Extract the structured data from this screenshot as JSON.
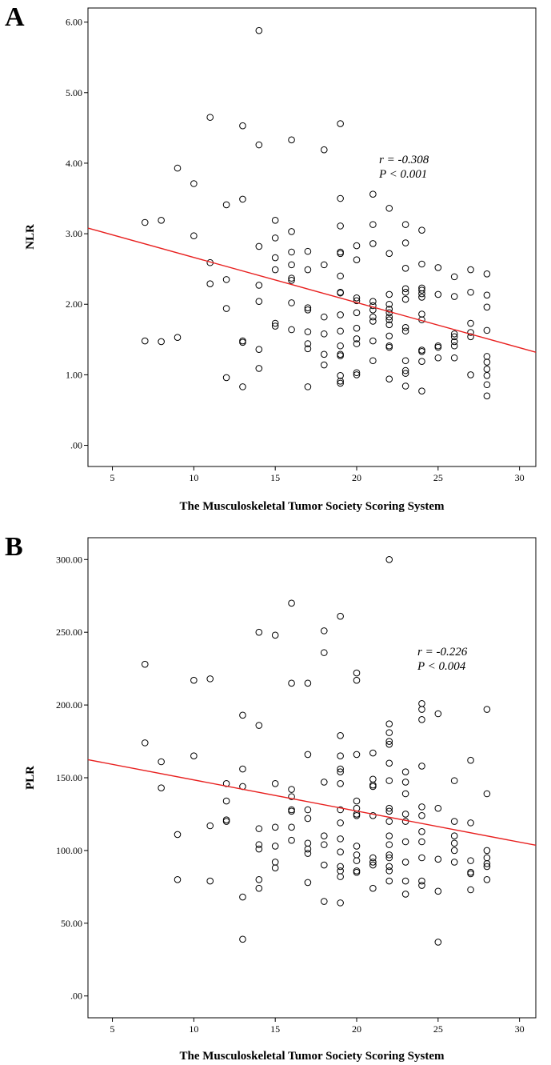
{
  "chart_data": [
    {
      "type": "scatter",
      "panel": "A",
      "xlabel": "The Musculoskeletal Tumor Society Scoring System",
      "ylabel": "NLR",
      "xlim": [
        3.5,
        31
      ],
      "ylim": [
        -0.3,
        6.2
      ],
      "xticks": [
        5,
        10,
        15,
        20,
        25,
        30
      ],
      "yticks": [
        0,
        1,
        2,
        3,
        4,
        5,
        6
      ],
      "ytick_labels": [
        ".00",
        "1.00",
        "2.00",
        "3.00",
        "4.00",
        "5.00",
        "6.00"
      ],
      "annotation": [
        "r  = -0.308",
        "P < 0.001"
      ],
      "fit_line": {
        "color": "#e8201f",
        "y_at_xmin": 3.08,
        "y_at_xmax": 1.32
      },
      "grid": false,
      "points": [
        [
          7,
          3.16
        ],
        [
          7,
          1.48
        ],
        [
          8,
          3.19
        ],
        [
          8,
          1.47
        ],
        [
          9,
          3.93
        ],
        [
          9,
          1.53
        ],
        [
          10,
          3.71
        ],
        [
          10,
          2.97
        ],
        [
          11,
          4.65
        ],
        [
          11,
          2.59
        ],
        [
          11,
          2.29
        ],
        [
          12,
          3.41
        ],
        [
          12,
          2.35
        ],
        [
          12,
          1.94
        ],
        [
          12,
          0.96
        ],
        [
          13,
          4.53
        ],
        [
          13,
          3.49
        ],
        [
          13,
          1.48
        ],
        [
          13,
          1.46
        ],
        [
          13,
          0.83
        ],
        [
          14,
          5.88
        ],
        [
          14,
          4.26
        ],
        [
          14,
          2.82
        ],
        [
          14,
          2.27
        ],
        [
          14,
          2.04
        ],
        [
          14,
          1.36
        ],
        [
          14,
          1.09
        ],
        [
          15,
          3.19
        ],
        [
          15,
          2.94
        ],
        [
          15,
          2.66
        ],
        [
          15,
          2.49
        ],
        [
          15,
          1.73
        ],
        [
          15,
          1.69
        ],
        [
          16,
          4.33
        ],
        [
          16,
          3.03
        ],
        [
          16,
          2.74
        ],
        [
          16,
          2.56
        ],
        [
          16,
          2.37
        ],
        [
          16,
          2.34
        ],
        [
          16,
          2.02
        ],
        [
          16,
          1.64
        ],
        [
          17,
          2.75
        ],
        [
          17,
          2.49
        ],
        [
          17,
          1.95
        ],
        [
          17,
          1.92
        ],
        [
          17,
          1.61
        ],
        [
          17,
          1.44
        ],
        [
          17,
          1.37
        ],
        [
          17,
          0.83
        ],
        [
          18,
          4.19
        ],
        [
          18,
          2.56
        ],
        [
          18,
          1.82
        ],
        [
          18,
          1.58
        ],
        [
          18,
          1.29
        ],
        [
          18,
          1.14
        ],
        [
          19,
          4.56
        ],
        [
          19,
          3.5
        ],
        [
          19,
          3.11
        ],
        [
          19,
          2.74
        ],
        [
          19,
          2.72
        ],
        [
          19,
          2.4
        ],
        [
          19,
          2.17
        ],
        [
          19,
          2.16
        ],
        [
          19,
          1.85
        ],
        [
          19,
          1.62
        ],
        [
          19,
          1.41
        ],
        [
          19,
          1.29
        ],
        [
          19,
          1.27
        ],
        [
          19,
          0.99
        ],
        [
          19,
          0.91
        ],
        [
          19,
          0.88
        ],
        [
          20,
          2.83
        ],
        [
          20,
          2.63
        ],
        [
          20,
          2.09
        ],
        [
          20,
          2.05
        ],
        [
          20,
          1.88
        ],
        [
          20,
          1.66
        ],
        [
          20,
          1.51
        ],
        [
          20,
          1.44
        ],
        [
          20,
          1.03
        ],
        [
          20,
          1.0
        ],
        [
          21,
          3.56
        ],
        [
          21,
          3.13
        ],
        [
          21,
          2.86
        ],
        [
          21,
          2.04
        ],
        [
          21,
          1.98
        ],
        [
          21,
          1.92
        ],
        [
          21,
          1.82
        ],
        [
          21,
          1.76
        ],
        [
          21,
          1.48
        ],
        [
          21,
          1.2
        ],
        [
          22,
          3.36
        ],
        [
          22,
          2.72
        ],
        [
          22,
          2.14
        ],
        [
          22,
          2.0
        ],
        [
          22,
          1.93
        ],
        [
          22,
          1.88
        ],
        [
          22,
          1.82
        ],
        [
          22,
          1.78
        ],
        [
          22,
          1.71
        ],
        [
          22,
          1.55
        ],
        [
          22,
          1.41
        ],
        [
          22,
          1.39
        ],
        [
          22,
          0.94
        ],
        [
          23,
          3.13
        ],
        [
          23,
          2.87
        ],
        [
          23,
          2.51
        ],
        [
          23,
          2.22
        ],
        [
          23,
          2.17
        ],
        [
          23,
          2.07
        ],
        [
          23,
          1.67
        ],
        [
          23,
          1.62
        ],
        [
          23,
          1.2
        ],
        [
          23,
          1.06
        ],
        [
          23,
          1.02
        ],
        [
          23,
          0.84
        ],
        [
          24,
          3.05
        ],
        [
          24,
          2.57
        ],
        [
          24,
          2.23
        ],
        [
          24,
          2.2
        ],
        [
          24,
          2.15
        ],
        [
          24,
          2.1
        ],
        [
          24,
          1.86
        ],
        [
          24,
          1.78
        ],
        [
          24,
          1.35
        ],
        [
          24,
          1.33
        ],
        [
          24,
          1.19
        ],
        [
          24,
          0.77
        ],
        [
          25,
          2.52
        ],
        [
          25,
          2.14
        ],
        [
          25,
          1.41
        ],
        [
          25,
          1.39
        ],
        [
          25,
          1.24
        ],
        [
          26,
          2.39
        ],
        [
          26,
          2.11
        ],
        [
          26,
          1.58
        ],
        [
          26,
          1.54
        ],
        [
          26,
          1.47
        ],
        [
          26,
          1.41
        ],
        [
          26,
          1.24
        ],
        [
          27,
          2.49
        ],
        [
          27,
          2.17
        ],
        [
          27,
          1.73
        ],
        [
          27,
          1.6
        ],
        [
          27,
          1.54
        ],
        [
          27,
          1.0
        ],
        [
          28,
          2.43
        ],
        [
          28,
          2.13
        ],
        [
          28,
          1.96
        ],
        [
          28,
          1.63
        ],
        [
          28,
          1.26
        ],
        [
          28,
          1.18
        ],
        [
          28,
          1.08
        ],
        [
          28,
          0.99
        ],
        [
          28,
          0.86
        ],
        [
          28,
          0.7
        ]
      ]
    },
    {
      "type": "scatter",
      "panel": "B",
      "xlabel": "The Musculoskeletal Tumor Society Scoring System",
      "ylabel": "PLR",
      "xlim": [
        3.5,
        31
      ],
      "ylim": [
        -15,
        315
      ],
      "xticks": [
        5,
        10,
        15,
        20,
        25,
        30
      ],
      "yticks": [
        0,
        50,
        100,
        150,
        200,
        250,
        300
      ],
      "ytick_labels": [
        ".00",
        "50.00",
        "100.00",
        "150.00",
        "200.00",
        "250.00",
        "300.00"
      ],
      "annotation": [
        "r  = -0.226",
        "P < 0.004"
      ],
      "fit_line": {
        "color": "#e8201f",
        "y_at_xmin": 162.4,
        "y_at_xmax": 103.6
      },
      "grid": false,
      "points": [
        [
          7,
          228
        ],
        [
          7,
          174
        ],
        [
          8,
          161
        ],
        [
          8,
          143
        ],
        [
          9,
          111
        ],
        [
          9,
          80
        ],
        [
          10,
          217
        ],
        [
          10,
          165
        ],
        [
          11,
          218
        ],
        [
          11,
          117
        ],
        [
          11,
          79
        ],
        [
          12,
          146
        ],
        [
          12,
          134
        ],
        [
          12,
          121
        ],
        [
          12,
          120
        ],
        [
          13,
          193
        ],
        [
          13,
          156
        ],
        [
          13,
          144
        ],
        [
          13,
          68
        ],
        [
          13,
          39
        ],
        [
          14,
          250
        ],
        [
          14,
          186
        ],
        [
          14,
          115
        ],
        [
          14,
          104
        ],
        [
          14,
          101
        ],
        [
          14,
          80
        ],
        [
          14,
          74
        ],
        [
          15,
          248
        ],
        [
          15,
          146
        ],
        [
          15,
          116
        ],
        [
          15,
          103
        ],
        [
          15,
          92
        ],
        [
          15,
          88
        ],
        [
          16,
          270
        ],
        [
          16,
          215
        ],
        [
          16,
          142
        ],
        [
          16,
          137
        ],
        [
          16,
          128
        ],
        [
          16,
          127
        ],
        [
          16,
          116
        ],
        [
          16,
          107
        ],
        [
          17,
          215
        ],
        [
          17,
          166
        ],
        [
          17,
          128
        ],
        [
          17,
          122
        ],
        [
          17,
          105
        ],
        [
          17,
          101
        ],
        [
          17,
          98
        ],
        [
          17,
          78
        ],
        [
          18,
          251
        ],
        [
          18,
          236
        ],
        [
          18,
          147
        ],
        [
          18,
          110
        ],
        [
          18,
          104
        ],
        [
          18,
          90
        ],
        [
          18,
          65
        ],
        [
          19,
          261
        ],
        [
          19,
          179
        ],
        [
          19,
          165
        ],
        [
          19,
          156
        ],
        [
          19,
          154
        ],
        [
          19,
          146
        ],
        [
          19,
          128
        ],
        [
          19,
          119
        ],
        [
          19,
          108
        ],
        [
          19,
          99
        ],
        [
          19,
          89
        ],
        [
          19,
          86
        ],
        [
          19,
          82
        ],
        [
          19,
          64
        ],
        [
          20,
          222
        ],
        [
          20,
          217
        ],
        [
          20,
          166
        ],
        [
          20,
          134
        ],
        [
          20,
          129
        ],
        [
          20,
          125
        ],
        [
          20,
          124
        ],
        [
          20,
          103
        ],
        [
          20,
          97
        ],
        [
          20,
          93
        ],
        [
          20,
          86
        ],
        [
          20,
          85
        ],
        [
          21,
          167
        ],
        [
          21,
          149
        ],
        [
          21,
          145
        ],
        [
          21,
          144
        ],
        [
          21,
          124
        ],
        [
          21,
          95
        ],
        [
          21,
          92
        ],
        [
          21,
          90
        ],
        [
          21,
          74
        ],
        [
          22,
          300
        ],
        [
          22,
          187
        ],
        [
          22,
          181
        ],
        [
          22,
          175
        ],
        [
          22,
          173
        ],
        [
          22,
          160
        ],
        [
          22,
          148
        ],
        [
          22,
          129
        ],
        [
          22,
          127
        ],
        [
          22,
          120
        ],
        [
          22,
          110
        ],
        [
          22,
          104
        ],
        [
          22,
          97
        ],
        [
          22,
          95
        ],
        [
          22,
          89
        ],
        [
          22,
          86
        ],
        [
          22,
          79
        ],
        [
          23,
          154
        ],
        [
          23,
          147
        ],
        [
          23,
          139
        ],
        [
          23,
          125
        ],
        [
          23,
          120
        ],
        [
          23,
          106
        ],
        [
          23,
          92
        ],
        [
          23,
          79
        ],
        [
          23,
          70
        ],
        [
          24,
          201
        ],
        [
          24,
          197
        ],
        [
          24,
          190
        ],
        [
          24,
          158
        ],
        [
          24,
          130
        ],
        [
          24,
          124
        ],
        [
          24,
          113
        ],
        [
          24,
          106
        ],
        [
          24,
          95
        ],
        [
          24,
          79
        ],
        [
          24,
          76
        ],
        [
          25,
          194
        ],
        [
          25,
          129
        ],
        [
          25,
          94
        ],
        [
          25,
          72
        ],
        [
          25,
          37
        ],
        [
          26,
          148
        ],
        [
          26,
          120
        ],
        [
          26,
          110
        ],
        [
          26,
          105
        ],
        [
          26,
          100
        ],
        [
          26,
          92
        ],
        [
          27,
          162
        ],
        [
          27,
          119
        ],
        [
          27,
          93
        ],
        [
          27,
          85
        ],
        [
          27,
          84
        ],
        [
          27,
          73
        ],
        [
          28,
          197
        ],
        [
          28,
          139
        ],
        [
          28,
          100
        ],
        [
          28,
          95
        ],
        [
          28,
          91
        ],
        [
          28,
          89
        ],
        [
          28,
          80
        ]
      ]
    }
  ]
}
